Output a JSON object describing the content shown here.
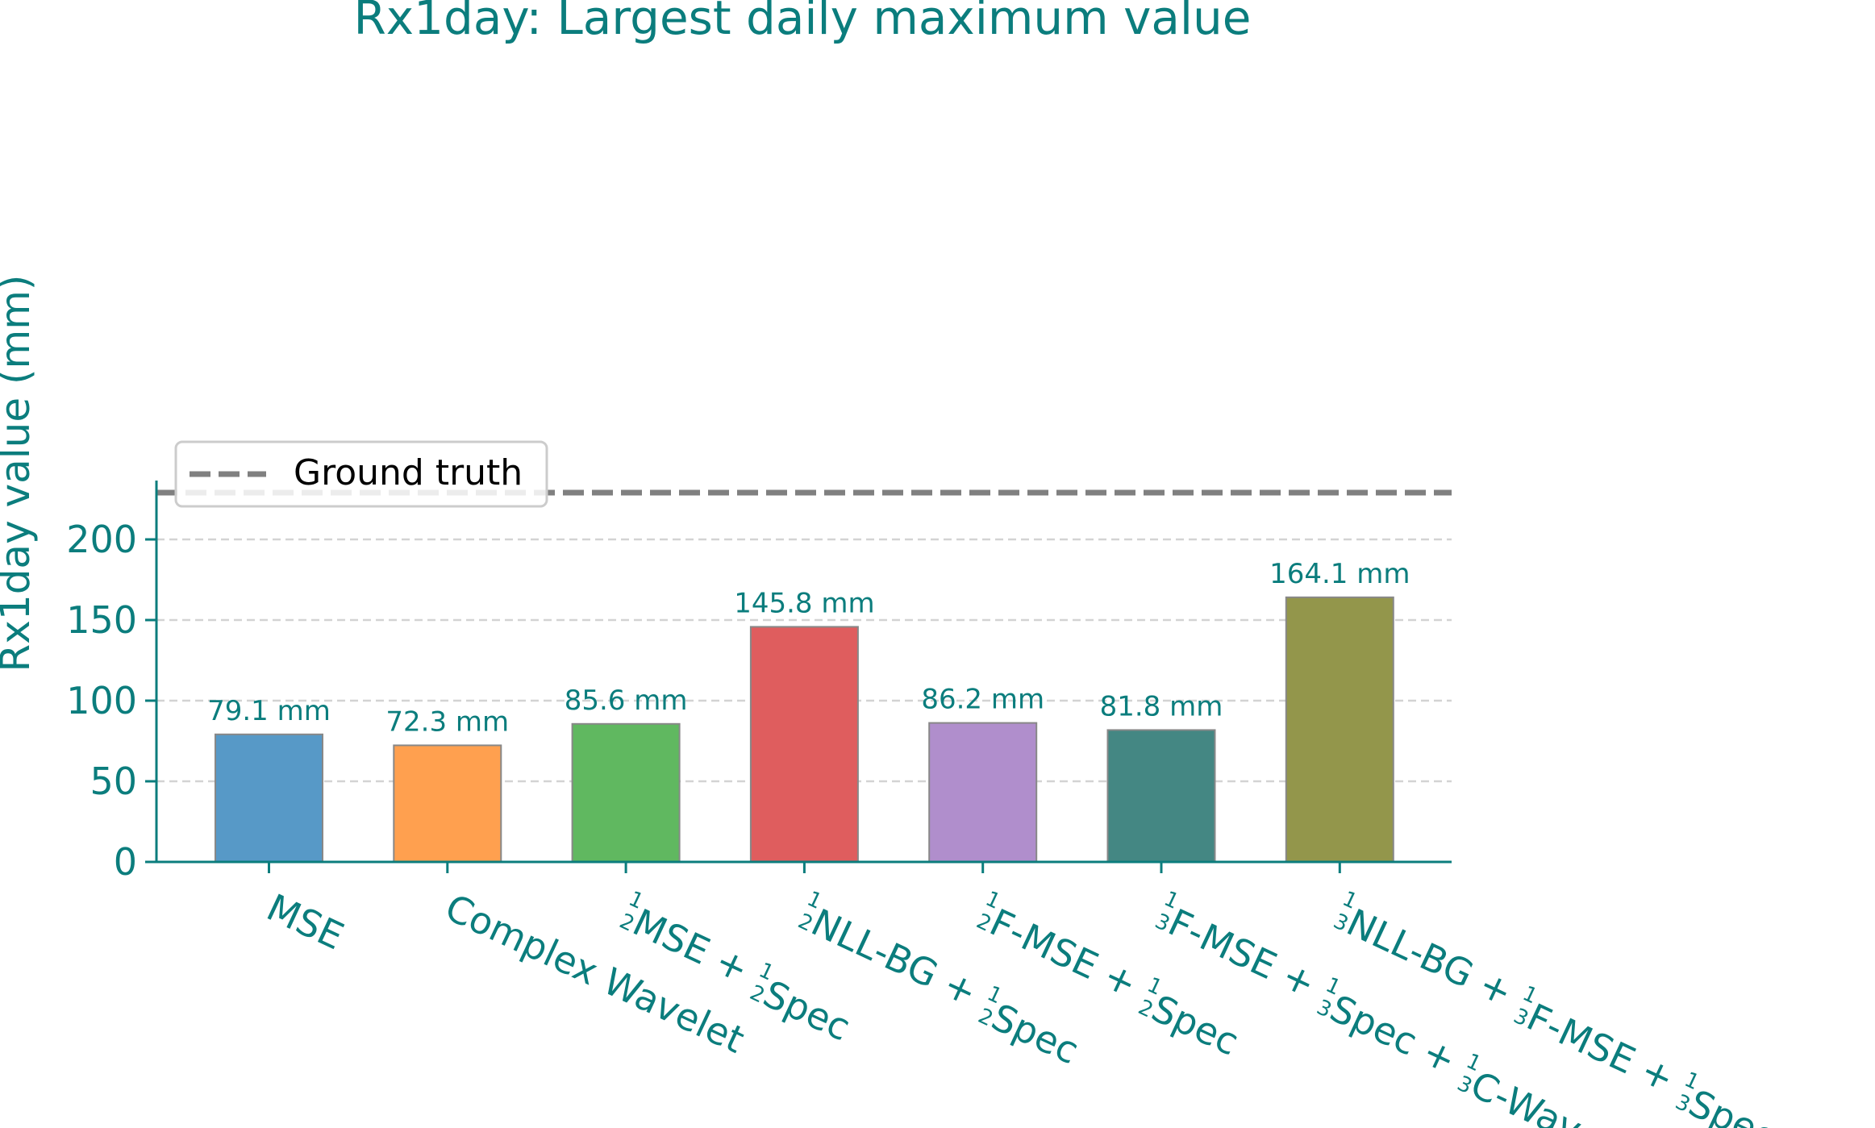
{
  "chart_data": {
    "type": "bar",
    "title": "Rx1day: Largest daily maximum value",
    "ylabel": "Rx1day value (mm)",
    "xlabel": "",
    "ylim": [
      0,
      235
    ],
    "yticks": [
      0,
      50,
      100,
      150,
      200
    ],
    "grid": true,
    "legend_position": "center-left",
    "legend": [
      {
        "label": "Ground truth",
        "style": "dashed",
        "color": "#808080"
      }
    ],
    "reference_line": {
      "name": "Ground truth",
      "value": 229
    },
    "value_unit": "mm",
    "categories": [
      {
        "parts": [
          {
            "t": "MSE"
          }
        ]
      },
      {
        "parts": [
          {
            "t": "Complex Wavelet"
          }
        ]
      },
      {
        "parts": [
          {
            "f": [
              "1",
              "2"
            ]
          },
          {
            "t": "MSE + "
          },
          {
            "f": [
              "1",
              "2"
            ]
          },
          {
            "t": "Spec"
          }
        ]
      },
      {
        "parts": [
          {
            "f": [
              "1",
              "2"
            ]
          },
          {
            "t": "NLL-BG + "
          },
          {
            "f": [
              "1",
              "2"
            ]
          },
          {
            "t": "Spec"
          }
        ]
      },
      {
        "parts": [
          {
            "f": [
              "1",
              "2"
            ]
          },
          {
            "t": "F-MSE + "
          },
          {
            "f": [
              "1",
              "2"
            ]
          },
          {
            "t": "Spec"
          }
        ]
      },
      {
        "parts": [
          {
            "f": [
              "1",
              "3"
            ]
          },
          {
            "t": "F-MSE + "
          },
          {
            "f": [
              "1",
              "3"
            ]
          },
          {
            "t": "Spec + "
          },
          {
            "f": [
              "1",
              "3"
            ]
          },
          {
            "t": "C-Wav"
          }
        ]
      },
      {
        "parts": [
          {
            "f": [
              "1",
              "3"
            ]
          },
          {
            "t": "NLL-BG + "
          },
          {
            "f": [
              "1",
              "3"
            ]
          },
          {
            "t": "F-MSE + "
          },
          {
            "f": [
              "1",
              "3"
            ]
          },
          {
            "t": "Spec"
          }
        ]
      }
    ],
    "values": [
      79.1,
      72.3,
      85.6,
      145.8,
      86.2,
      81.8,
      164.1
    ],
    "value_labels": [
      "79.1 mm",
      "72.3 mm",
      "85.6 mm",
      "145.8 mm",
      "86.2 mm",
      "81.8 mm",
      "164.1 mm"
    ],
    "colors": [
      "#5799c7",
      "#ffa04f",
      "#60b860",
      "#df5d5e",
      "#b08ecc",
      "#448783",
      "#93964b"
    ],
    "text_color": "#0b7d7d"
  }
}
